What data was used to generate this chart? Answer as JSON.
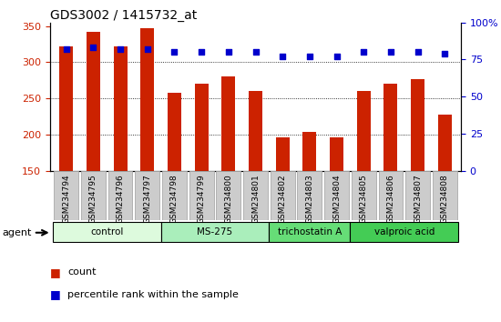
{
  "title": "GDS3002 / 1415732_at",
  "samples": [
    "GSM234794",
    "GSM234795",
    "GSM234796",
    "GSM234797",
    "GSM234798",
    "GSM234799",
    "GSM234800",
    "GSM234801",
    "GSM234802",
    "GSM234803",
    "GSM234804",
    "GSM234805",
    "GSM234806",
    "GSM234807",
    "GSM234808"
  ],
  "counts": [
    322,
    342,
    322,
    347,
    258,
    270,
    280,
    260,
    196,
    204,
    196,
    260,
    271,
    277,
    228
  ],
  "percentile": [
    82,
    83,
    82,
    82,
    80,
    80,
    80,
    80,
    77,
    77,
    77,
    80,
    80,
    80,
    79
  ],
  "bar_color": "#cc2200",
  "dot_color": "#0000cc",
  "ylim_left": [
    150,
    355
  ],
  "ylim_right": [
    0,
    100
  ],
  "yticks_left": [
    150,
    200,
    250,
    300,
    350
  ],
  "yticks_right": [
    0,
    25,
    50,
    75,
    100
  ],
  "grid_lines": [
    200,
    250,
    300
  ],
  "groups": [
    {
      "label": "control",
      "start": 0,
      "end": 3,
      "color": "#ddfadd"
    },
    {
      "label": "MS-275",
      "start": 4,
      "end": 7,
      "color": "#aaeebb"
    },
    {
      "label": "trichostatin A",
      "start": 8,
      "end": 10,
      "color": "#66dd77"
    },
    {
      "label": "valproic acid",
      "start": 11,
      "end": 14,
      "color": "#44cc55"
    }
  ],
  "agent_label": "agent",
  "legend_count_label": "count",
  "legend_percentile_label": "percentile rank within the sample",
  "left_axis_color": "#cc2200",
  "right_axis_color": "#0000cc",
  "tick_label_bg": "#cccccc",
  "tick_label_border": "#aaaaaa"
}
